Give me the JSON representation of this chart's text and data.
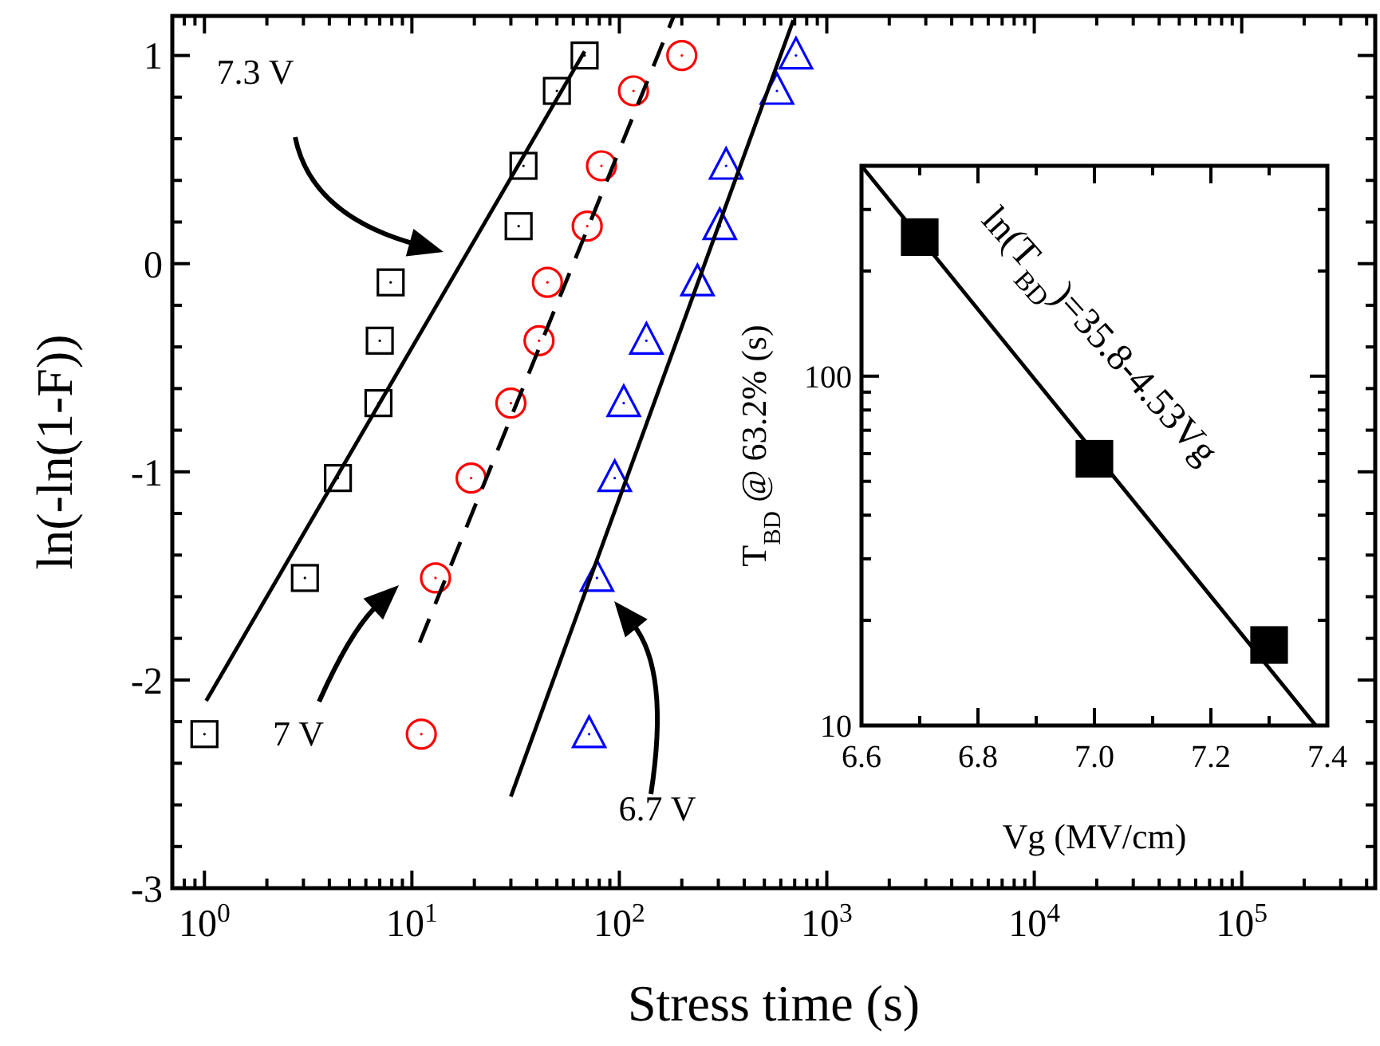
{
  "chart_data": [
    {
      "type": "scatter",
      "xlabel": "Stress time (s)",
      "ylabel": "ln(-ln(1-F))",
      "log": "x",
      "xlim": [
        0.7,
        440000
      ],
      "ylim": [
        -3,
        1.19
      ],
      "xticks": [
        {
          "value": 0.8,
          "label": null
        },
        {
          "value": 0.9,
          "label": null
        },
        {
          "value": 1,
          "label": "10$^{0}$"
        },
        {
          "value": 2,
          "label": null
        },
        {
          "value": 3,
          "label": null
        },
        {
          "value": 4,
          "label": null
        },
        {
          "value": 5,
          "label": null
        },
        {
          "value": 6,
          "label": null
        },
        {
          "value": 7,
          "label": null
        },
        {
          "value": 8,
          "label": null
        },
        {
          "value": 9,
          "label": null
        },
        {
          "value": 10,
          "label": "10$^{1}$"
        },
        {
          "value": 20,
          "label": null
        },
        {
          "value": 30,
          "label": null
        },
        {
          "value": 40,
          "label": null
        },
        {
          "value": 50,
          "label": null
        },
        {
          "value": 60,
          "label": null
        },
        {
          "value": 70,
          "label": null
        },
        {
          "value": 80,
          "label": null
        },
        {
          "value": 90,
          "label": null
        },
        {
          "value": 100,
          "label": "10$^{2}$"
        },
        {
          "value": 200,
          "label": null
        },
        {
          "value": 300,
          "label": null
        },
        {
          "value": 400,
          "label": null
        },
        {
          "value": 500,
          "label": null
        },
        {
          "value": 600,
          "label": null
        },
        {
          "value": 700,
          "label": null
        },
        {
          "value": 800,
          "label": null
        },
        {
          "value": 900,
          "label": null
        },
        {
          "value": 1000,
          "label": "10$^{3}$"
        },
        {
          "value": 2000,
          "label": null
        },
        {
          "value": 3000,
          "label": null
        },
        {
          "value": 4000,
          "label": null
        },
        {
          "value": 5000,
          "label": null
        },
        {
          "value": 6000,
          "label": null
        },
        {
          "value": 7000,
          "label": null
        },
        {
          "value": 8000,
          "label": null
        },
        {
          "value": 9000,
          "label": null
        },
        {
          "value": 10000,
          "label": "10$^{4}$"
        },
        {
          "value": 20000,
          "label": null
        },
        {
          "value": 30000,
          "label": null
        },
        {
          "value": 40000,
          "label": null
        },
        {
          "value": 50000,
          "label": null
        },
        {
          "value": 60000,
          "label": null
        },
        {
          "value": 70000,
          "label": null
        },
        {
          "value": 80000,
          "label": null
        },
        {
          "value": 90000,
          "label": null
        },
        {
          "value": 100000,
          "label": "10$^{5}$"
        },
        {
          "value": 200000,
          "label": null
        },
        {
          "value": 300000,
          "label": null
        },
        {
          "value": 400000,
          "label": null
        }
      ],
      "yticks": [
        -3,
        {
          "value": -2.8,
          "label": null
        },
        {
          "value": -2.6,
          "label": null
        },
        {
          "value": -2.4,
          "label": null
        },
        {
          "value": -2.2,
          "label": null
        },
        -2,
        {
          "value": -1.8,
          "label": null
        },
        {
          "value": -1.6,
          "label": null
        },
        {
          "value": -1.4,
          "label": null
        },
        {
          "value": -1.2,
          "label": null
        },
        -1,
        {
          "value": -0.8,
          "label": null
        },
        {
          "value": -0.6,
          "label": null
        },
        {
          "value": -0.4,
          "label": null
        },
        {
          "value": -0.2,
          "label": null
        },
        0,
        {
          "value": 0.2,
          "label": null
        },
        {
          "value": 0.4,
          "label": null
        },
        {
          "value": 0.6,
          "label": null
        },
        {
          "value": 0.8,
          "label": null
        },
        1
      ],
      "series": [
        {
          "type": "scatter",
          "marker": "square",
          "color": "#000000",
          "x": [
            1,
            3.05,
            4.4,
            6.9,
            7,
            7.9,
            32.7,
            34.5,
            50,
            68
          ],
          "values": [
            -2.26,
            -1.51,
            -1.03,
            -0.67,
            -0.37,
            -0.09,
            0.18,
            0.47,
            0.83,
            1.0
          ]
        },
        {
          "type": "scatter",
          "marker": "circle",
          "color": "#ff0000",
          "x": [
            11.1,
            13,
            19.3,
            30,
            41,
            45,
            70,
            82,
            117,
            200
          ],
          "values": [
            -2.26,
            -1.51,
            -1.03,
            -0.67,
            -0.37,
            -0.09,
            0.18,
            0.47,
            0.83,
            1.0
          ]
        },
        {
          "type": "scatter",
          "marker": "triangle",
          "color": "#0000ff",
          "x": [
            71.5,
            78,
            95,
            105,
            135,
            238,
            305,
            327,
            575,
            710
          ],
          "values": [
            -2.26,
            -1.51,
            -1.03,
            -0.67,
            -0.37,
            -0.09,
            0.18,
            0.47,
            0.83,
            1.0
          ]
        },
        {
          "type": "line",
          "line_style": "solid",
          "color": "#000000",
          "x": [
            1.02,
            68
          ],
          "values": [
            -2.1,
            1.02
          ]
        },
        {
          "type": "line",
          "line_style": "dashed",
          "color": "#000000",
          "x": [
            10.9,
            183
          ],
          "values": [
            -1.82,
            1.19
          ]
        },
        {
          "type": "line",
          "line_style": "solid",
          "color": "#000000",
          "x": [
            30,
            690
          ],
          "values": [
            -2.56,
            1.17
          ]
        }
      ],
      "annotations": [
        "7.3 V",
        "7 V",
        "6.7 V"
      ]
    },
    {
      "type": "scatter",
      "xlabel": "Vg (MV/cm)",
      "ylabel": "T$_{BD}$ @ 63.2% (s)",
      "log": "y",
      "xlim": [
        6.6,
        7.4
      ],
      "ylim": [
        10,
        400
      ],
      "xticks": [
        6.6,
        {
          "value": 6.7,
          "label": null
        },
        6.8,
        {
          "value": 6.9,
          "label": null
        },
        {
          "value": 7,
          "label": "7.0"
        },
        {
          "value": 7.1,
          "label": null
        },
        7.2,
        {
          "value": 7.3,
          "label": null
        },
        7.4
      ],
      "yticks": [
        10,
        {
          "value": 20,
          "label": null
        },
        {
          "value": 30,
          "label": null
        },
        {
          "value": 40,
          "label": null
        },
        {
          "value": 50,
          "label": null
        },
        {
          "value": 60,
          "label": null
        },
        {
          "value": 70,
          "label": null
        },
        {
          "value": 80,
          "label": null
        },
        {
          "value": 90,
          "label": null
        },
        100,
        {
          "value": 200,
          "label": null
        },
        {
          "value": 300,
          "label": null
        },
        {
          "value": 400,
          "label": null
        }
      ],
      "series": [
        {
          "type": "scatter",
          "marker": "square",
          "color": "#000000",
          "x": [
            6.7,
            7.0,
            7.3
          ],
          "values": [
            250,
            58,
            17
          ]
        },
        {
          "type": "line",
          "line_style": "solid",
          "color": "#000000",
          "x": [
            6.6,
            7.38
          ],
          "values": [
            400,
            10
          ]
        }
      ],
      "annotations": [
        "ln(T$_{BD}$)=35.8-4.53Vg"
      ]
    }
  ]
}
